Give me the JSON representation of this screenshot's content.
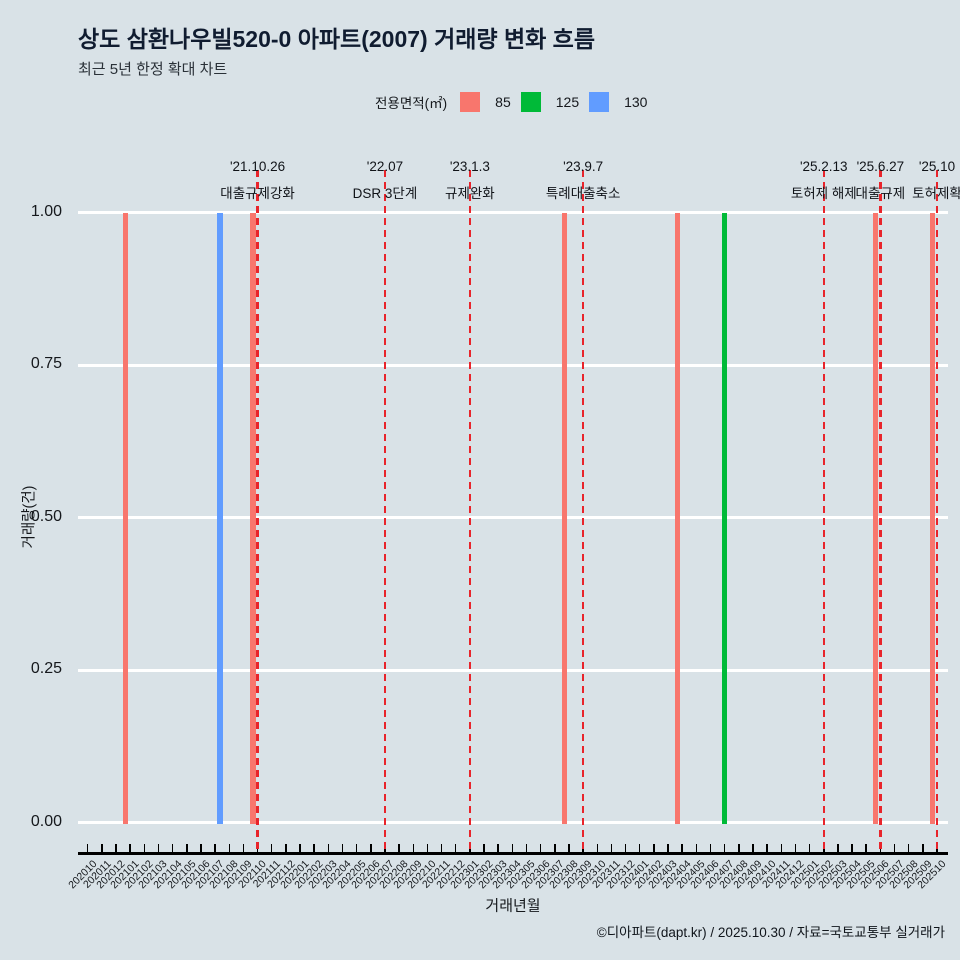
{
  "page": {
    "background": "#d9e2e7"
  },
  "header": {
    "title": "상도 삼환나우빌520-0 아파트(2007) 거래량 변화 흐름",
    "subtitle": "최근 5년 한정 확대 차트"
  },
  "legend": {
    "label": "전용면적(㎡)",
    "items": [
      {
        "name": "85",
        "color": "#f8766d"
      },
      {
        "name": "125",
        "color": "#00ba38"
      },
      {
        "name": "130",
        "color": "#619cff"
      }
    ]
  },
  "footer": {
    "credit": "©디아파트(dapt.kr) / 2025.10.30 / 자료=국토교통부 실거래가"
  },
  "chart_data": {
    "type": "bar",
    "title": "상도 삼환나우빌520-0 아파트(2007) 거래량 변화 흐름",
    "subtitle": "최근 5년 한정 확대 차트",
    "xlabel": "거래년월",
    "ylabel": "거래량(건)",
    "ylim": [
      0,
      1
    ],
    "yticks": [
      "0.00",
      "0.25",
      "0.50",
      "0.75",
      "1.00"
    ],
    "grid": "horizontal-white-major",
    "legend_position": "top",
    "categories": [
      "202010",
      "202011",
      "202012",
      "202101",
      "202102",
      "202103",
      "202104",
      "202105",
      "202106",
      "202107",
      "202108",
      "202109",
      "202110",
      "202111",
      "202112",
      "202201",
      "202202",
      "202203",
      "202204",
      "202205",
      "202206",
      "202207",
      "202208",
      "202209",
      "202210",
      "202211",
      "202212",
      "202301",
      "202302",
      "202303",
      "202304",
      "202305",
      "202306",
      "202307",
      "202308",
      "202309",
      "202310",
      "202311",
      "202312",
      "202401",
      "202402",
      "202403",
      "202404",
      "202405",
      "202406",
      "202407",
      "202408",
      "202409",
      "202410",
      "202411",
      "202412",
      "202501",
      "202502",
      "202503",
      "202504",
      "202505",
      "202506",
      "202507",
      "202508",
      "202509",
      "202510"
    ],
    "series": [
      {
        "name": "85",
        "color": "#f8766d",
        "data": {
          "202101": 1,
          "202110": 1,
          "202308": 1,
          "202404": 1,
          "202506": 1,
          "202510": 1
        }
      },
      {
        "name": "125",
        "color": "#00ba38",
        "data": {
          "202407": 1
        }
      },
      {
        "name": "130",
        "color": "#619cff",
        "data": {
          "202107": 1
        }
      }
    ],
    "event_line_color": "#e8242b",
    "events": [
      {
        "month": "202110",
        "date": "'21.10.26",
        "label": "대출규제강화"
      },
      {
        "month": "202207",
        "date": "'22.07",
        "label": "DSR 3단계"
      },
      {
        "month": "202301",
        "date": "'23.1.3",
        "label": "규제완화"
      },
      {
        "month": "202309",
        "date": "'23.9.7",
        "label": "특례대출축소"
      },
      {
        "month": "202502",
        "date": "'25.2.13",
        "label": "토허제 해제"
      },
      {
        "month": "202506",
        "date": "'25.6.27",
        "label": "대출규제"
      },
      {
        "month": "202510",
        "date": "'25.10",
        "label": "토허제확"
      }
    ]
  }
}
